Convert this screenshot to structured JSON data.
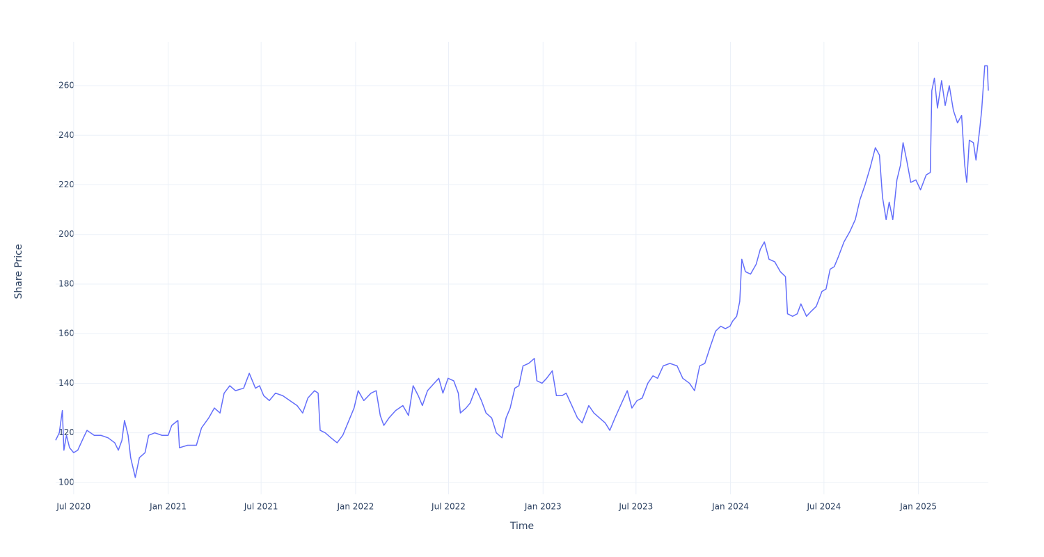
{
  "chart_data": {
    "type": "line",
    "x_label": "Time",
    "y_label": "Share Price",
    "grid": true,
    "xlim": [
      "2020-05-27",
      "2025-05-17"
    ],
    "xticks": [
      {
        "value": "2020-07-01",
        "label": "Jul 2020"
      },
      {
        "value": "2021-01-01",
        "label": "Jan 2021"
      },
      {
        "value": "2021-07-01",
        "label": "Jul 2021"
      },
      {
        "value": "2022-01-01",
        "label": "Jan 2022"
      },
      {
        "value": "2022-07-01",
        "label": "Jul 2022"
      },
      {
        "value": "2023-01-01",
        "label": "Jan 2023"
      },
      {
        "value": "2023-07-01",
        "label": "Jul 2023"
      },
      {
        "value": "2024-01-01",
        "label": "Jan 2024"
      },
      {
        "value": "2024-07-01",
        "label": "Jul 2024"
      },
      {
        "value": "2025-01-01",
        "label": "Jan 2025"
      }
    ],
    "ylim": [
      95.2,
      277.7
    ],
    "yticks": [
      100,
      120,
      140,
      160,
      180,
      200,
      220,
      240,
      260
    ],
    "x": [
      "2020-05-27",
      "2020-06-03",
      "2020-06-09",
      "2020-06-12",
      "2020-06-17",
      "2020-06-23",
      "2020-07-01",
      "2020-07-09",
      "2020-07-20",
      "2020-07-27",
      "2020-08-10",
      "2020-08-23",
      "2020-09-06",
      "2020-09-19",
      "2020-09-26",
      "2020-10-03",
      "2020-10-08",
      "2020-10-15",
      "2020-10-20",
      "2020-10-29",
      "2020-11-06",
      "2020-11-17",
      "2020-11-24",
      "2020-12-06",
      "2020-12-20",
      "2021-01-01",
      "2021-01-08",
      "2021-01-20",
      "2021-01-23",
      "2021-02-08",
      "2021-02-25",
      "2021-03-07",
      "2021-03-21",
      "2021-04-01",
      "2021-04-12",
      "2021-04-20",
      "2021-05-01",
      "2021-05-12",
      "2021-05-28",
      "2021-06-08",
      "2021-06-20",
      "2021-06-28",
      "2021-07-06",
      "2021-07-17",
      "2021-07-29",
      "2021-08-12",
      "2021-08-26",
      "2021-09-09",
      "2021-09-20",
      "2021-09-30",
      "2021-10-13",
      "2021-10-20",
      "2021-10-24",
      "2021-11-03",
      "2021-11-14",
      "2021-11-26",
      "2021-12-07",
      "2021-12-17",
      "2021-12-29",
      "2022-01-06",
      "2022-01-17",
      "2022-01-31",
      "2022-02-10",
      "2022-02-18",
      "2022-02-25",
      "2022-03-07",
      "2022-03-20",
      "2022-04-03",
      "2022-04-14",
      "2022-04-23",
      "2022-05-03",
      "2022-05-11",
      "2022-05-21",
      "2022-06-03",
      "2022-06-12",
      "2022-06-20",
      "2022-06-30",
      "2022-07-11",
      "2022-07-20",
      "2022-07-24",
      "2022-08-04",
      "2022-08-12",
      "2022-08-23",
      "2022-09-03",
      "2022-09-12",
      "2022-09-23",
      "2022-10-02",
      "2022-10-13",
      "2022-10-21",
      "2022-10-29",
      "2022-11-07",
      "2022-11-15",
      "2022-11-23",
      "2022-12-04",
      "2022-12-15",
      "2022-12-20",
      "2022-12-30",
      "2023-01-08",
      "2023-01-19",
      "2023-01-27",
      "2023-02-07",
      "2023-02-15",
      "2023-02-26",
      "2023-03-09",
      "2023-03-18",
      "2023-03-31",
      "2023-04-10",
      "2023-04-21",
      "2023-05-02",
      "2023-05-11",
      "2023-05-21",
      "2023-06-03",
      "2023-06-14",
      "2023-06-23",
      "2023-07-03",
      "2023-07-13",
      "2023-07-24",
      "2023-08-03",
      "2023-08-12",
      "2023-08-23",
      "2023-09-05",
      "2023-09-19",
      "2023-09-30",
      "2023-10-13",
      "2023-10-23",
      "2023-11-02",
      "2023-11-12",
      "2023-11-23",
      "2023-12-03",
      "2023-12-13",
      "2023-12-22",
      "2023-12-31",
      "2024-01-05",
      "2024-01-13",
      "2024-01-19",
      "2024-01-23",
      "2024-01-30",
      "2024-02-09",
      "2024-02-20",
      "2024-02-28",
      "2024-03-07",
      "2024-03-16",
      "2024-03-27",
      "2024-04-07",
      "2024-04-17",
      "2024-04-21",
      "2024-05-01",
      "2024-05-10",
      "2024-05-17",
      "2024-05-28",
      "2024-06-06",
      "2024-06-16",
      "2024-06-27",
      "2024-07-05",
      "2024-07-13",
      "2024-07-21",
      "2024-07-29",
      "2024-08-09",
      "2024-08-20",
      "2024-08-31",
      "2024-09-09",
      "2024-09-19",
      "2024-09-29",
      "2024-10-09",
      "2024-10-17",
      "2024-10-23",
      "2024-10-30",
      "2024-11-05",
      "2024-11-12",
      "2024-11-20",
      "2024-11-27",
      "2024-12-02",
      "2024-12-09",
      "2024-12-17",
      "2024-12-27",
      "2025-01-05",
      "2025-01-16",
      "2025-01-24",
      "2025-01-27",
      "2025-02-01",
      "2025-02-07",
      "2025-02-15",
      "2025-02-22",
      "2025-03-02",
      "2025-03-10",
      "2025-03-18",
      "2025-03-26",
      "2025-04-01",
      "2025-04-05",
      "2025-04-10",
      "2025-04-18",
      "2025-04-23",
      "2025-04-30",
      "2025-05-04",
      "2025-05-10",
      "2025-05-15",
      "2025-05-17"
    ],
    "series": [
      {
        "name": "Share Price",
        "color": "#636efa",
        "values": [
          117,
          120,
          129,
          113,
          119,
          114,
          112,
          113,
          118,
          121,
          119,
          119,
          118,
          116,
          113,
          117,
          125,
          119,
          110,
          102,
          110,
          112,
          119,
          120,
          119,
          119,
          123,
          125,
          114,
          115,
          115,
          122,
          126,
          130,
          128,
          136,
          139,
          137,
          138,
          144,
          138,
          139,
          135,
          133,
          136,
          135,
          133,
          131,
          128,
          134,
          137,
          136,
          121,
          120,
          118,
          116,
          119,
          124,
          130,
          137,
          133,
          136,
          137,
          127,
          123,
          126,
          129,
          131,
          127,
          139,
          135,
          131,
          137,
          140,
          142,
          136,
          142,
          141,
          136,
          128,
          130,
          132,
          138,
          133,
          128,
          126,
          120,
          118,
          126,
          130,
          138,
          139,
          147,
          148,
          150,
          141,
          140,
          142,
          145,
          135,
          135,
          136,
          131,
          126,
          124,
          131,
          128,
          126,
          124,
          121,
          126,
          132,
          137,
          130,
          133,
          134,
          140,
          143,
          142,
          147,
          148,
          147,
          142,
          140,
          137,
          147,
          148,
          155,
          161,
          163,
          162,
          163,
          165,
          167,
          173,
          190,
          185,
          184,
          188,
          194,
          197,
          190,
          189,
          185,
          183,
          168,
          167,
          168,
          172,
          167,
          169,
          171,
          177,
          178,
          186,
          187,
          191,
          197,
          201,
          206,
          214,
          220,
          227,
          235,
          232,
          215,
          206,
          213,
          206,
          222,
          228,
          237,
          230,
          221,
          222,
          218,
          224,
          225,
          258,
          263,
          251,
          262,
          252,
          260,
          250,
          245,
          248,
          228,
          221,
          238,
          237,
          230,
          242,
          250,
          268,
          268,
          258
        ]
      }
    ]
  }
}
